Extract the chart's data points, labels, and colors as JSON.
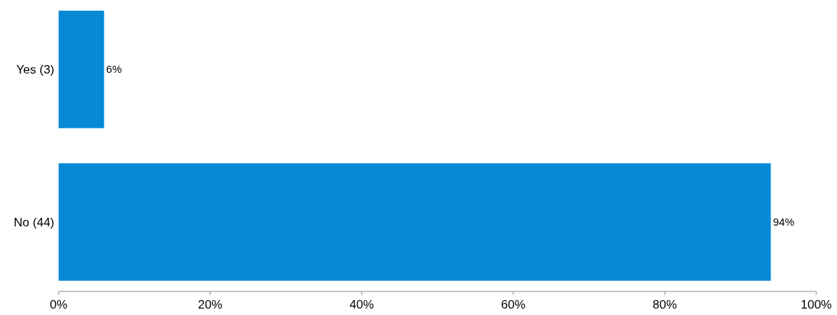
{
  "chart_data": {
    "type": "bar",
    "orientation": "horizontal",
    "categories": [
      "Yes (3)",
      "No (44)"
    ],
    "values": [
      6,
      94
    ],
    "color": "#0789d6",
    "value_labels": [
      "6%",
      "94%"
    ],
    "xlim": [
      0,
      100
    ],
    "xticks": [
      {
        "value": 0,
        "label": "0%"
      },
      {
        "value": 20,
        "label": "20%"
      },
      {
        "value": 40,
        "label": "40%"
      },
      {
        "value": 60,
        "label": "60%"
      },
      {
        "value": 80,
        "label": "80%"
      },
      {
        "value": 100,
        "label": "100%"
      }
    ]
  }
}
